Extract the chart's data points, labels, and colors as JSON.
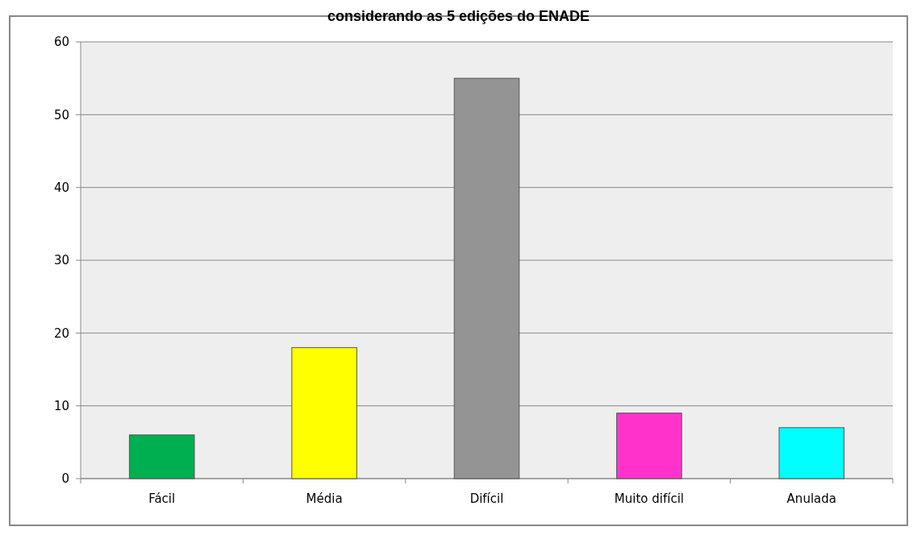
{
  "chart_data": {
    "type": "bar",
    "title": "considerando as 5 edições do ENADE",
    "categories": [
      "Fácil",
      "Média",
      "Difícil",
      "Muito difícil",
      "Anulada"
    ],
    "values": [
      6,
      18,
      55,
      9,
      7
    ],
    "colors": [
      "#00b050",
      "#ffff00",
      "#949494",
      "#ff33cc",
      "#00ffff"
    ],
    "ylim": [
      0,
      60
    ],
    "yticks": [
      0,
      10,
      20,
      30,
      40,
      50,
      60
    ],
    "grid": "y"
  }
}
